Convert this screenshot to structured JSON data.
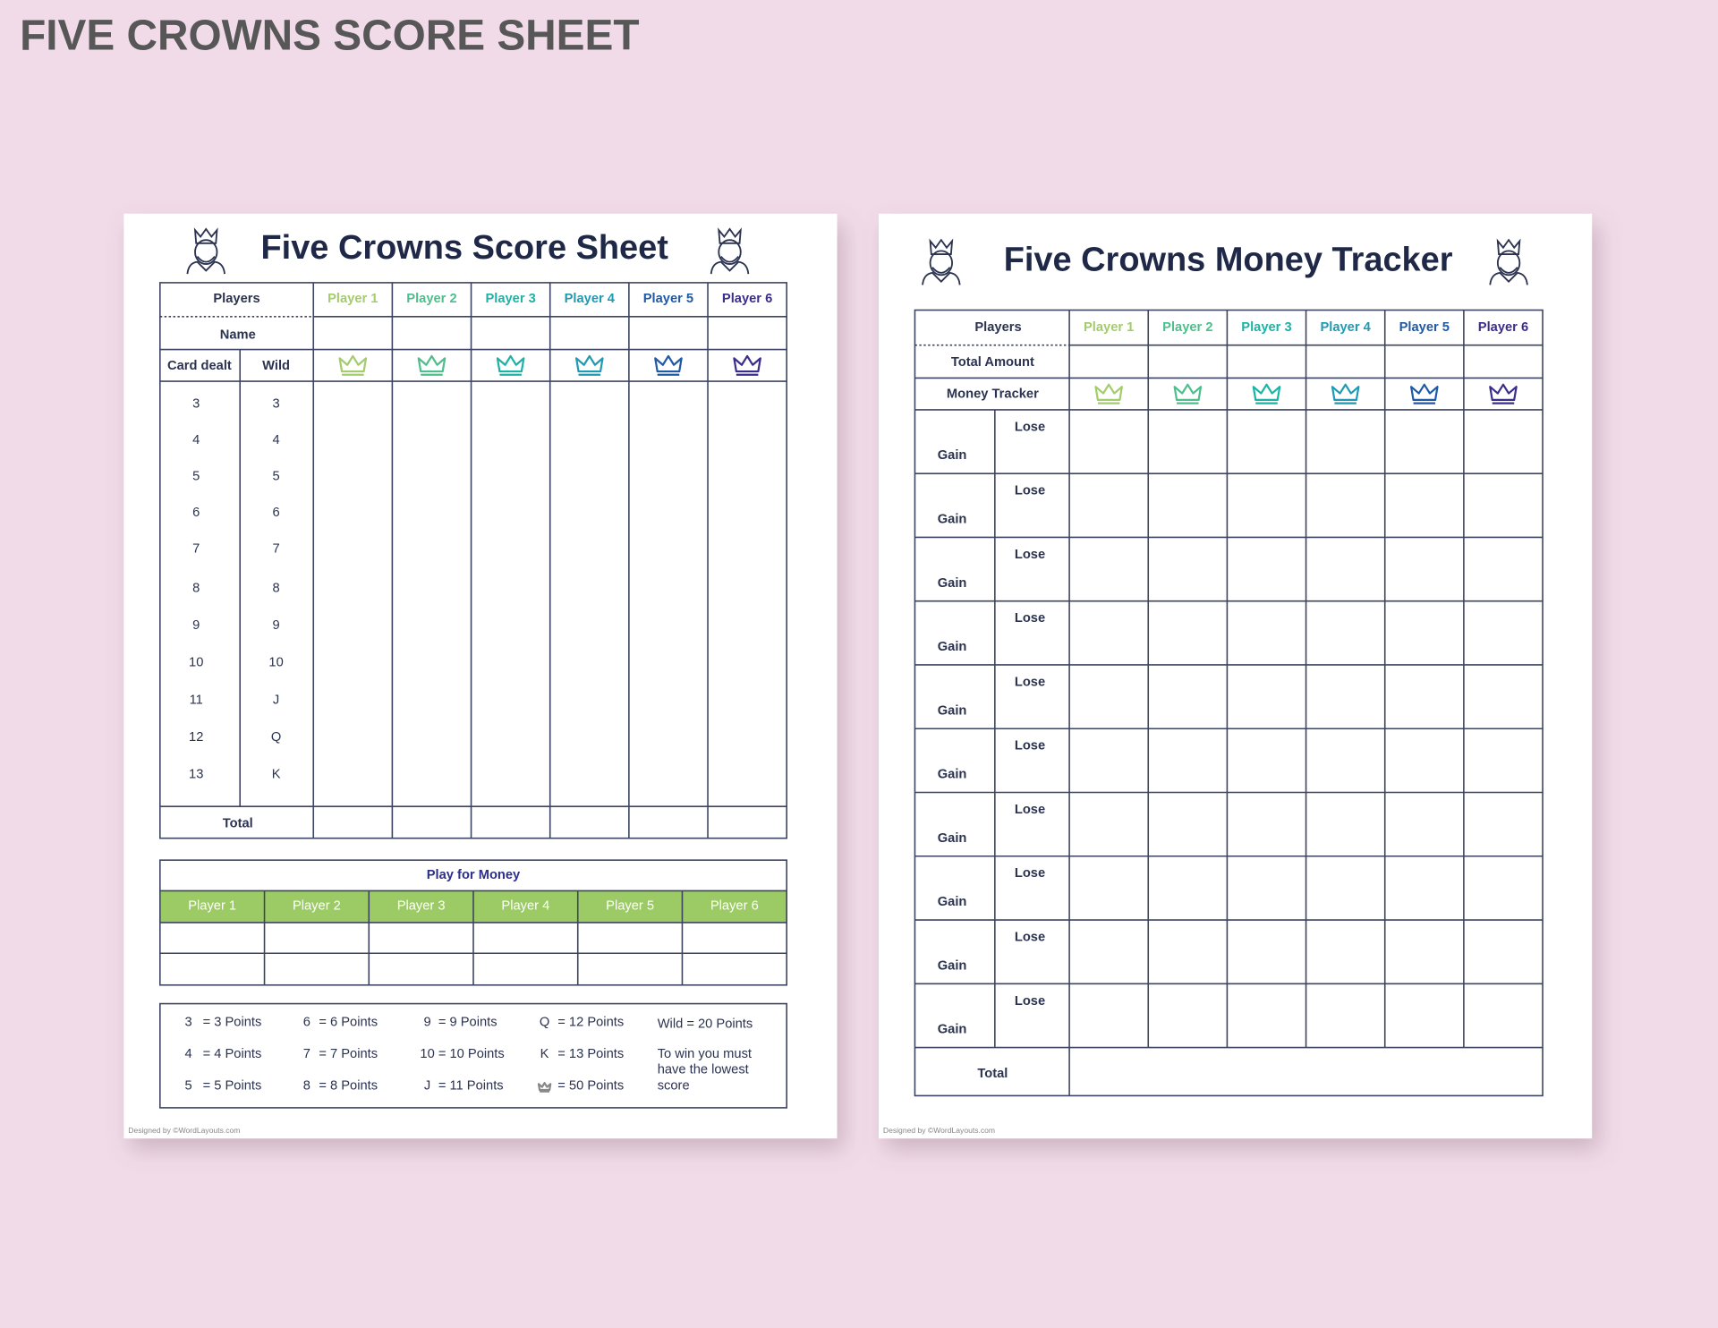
{
  "title": "FIVE CROWNS SCORE SHEET",
  "player_colors": [
    "#a3cc6b",
    "#4cbf8c",
    "#1bb3a6",
    "#1f9ab4",
    "#1f5aa6",
    "#3a2d8c"
  ],
  "score_sheet": {
    "title": "Five Crowns Score Sheet",
    "players_label": "Players",
    "players": [
      "Player 1",
      "Player 2",
      "Player 3",
      "Player 4",
      "Player 5",
      "Player 6"
    ],
    "name_label": "Name",
    "card_dealt_label": "Card dealt",
    "wild_label": "Wild",
    "rounds": [
      [
        "3",
        "3"
      ],
      [
        "4",
        "4"
      ],
      [
        "5",
        "5"
      ],
      [
        "6",
        "6"
      ],
      [
        "7",
        "7"
      ],
      [
        "8",
        "8"
      ],
      [
        "9",
        "9"
      ],
      [
        "10",
        "10"
      ],
      [
        "11",
        "J"
      ],
      [
        "12",
        "Q"
      ],
      [
        "13",
        "K"
      ]
    ],
    "total_label": "Total",
    "money": {
      "title": "Play for Money",
      "players": [
        "Player 1",
        "Player 2",
        "Player 3",
        "Player 4",
        "Player 5",
        "Player 6"
      ]
    },
    "points": [
      [
        {
          "key": "3",
          "value": "= 3 Points"
        },
        {
          "key": "4",
          "value": "= 4 Points"
        },
        {
          "key": "5",
          "value": "= 5 Points"
        }
      ],
      [
        {
          "key": "6",
          "value": "= 6 Points"
        },
        {
          "key": "7",
          "value": "= 7 Points"
        },
        {
          "key": "8",
          "value": "= 8 Points"
        }
      ],
      [
        {
          "key": "9",
          "value": "= 9 Points"
        },
        {
          "key": "10",
          "value": "= 10 Points"
        },
        {
          "key": "J",
          "value": "= 11 Points"
        }
      ],
      [
        {
          "key": "Q",
          "value": "= 12 Points"
        },
        {
          "key": "K",
          "value": "= 13 Points"
        },
        {
          "value": "= 50 Points"
        }
      ]
    ],
    "wild_points": "Wild = 20 Points",
    "win_note": [
      "To win you must",
      "have the lowest",
      "score"
    ],
    "credit": "Designed by ©WordLayouts.com"
  },
  "money_tracker": {
    "title": "Five Crowns Money Tracker",
    "players_label": "Players",
    "players": [
      "Player 1",
      "Player 2",
      "Player 3",
      "Player 4",
      "Player 5",
      "Player 6"
    ],
    "total_amount_label": "Total Amount",
    "money_tracker_label": "Money Tracker",
    "rows": [
      [
        "Lose",
        "Gain"
      ],
      [
        "Lose",
        "Gain"
      ],
      [
        "Lose",
        "Gain"
      ],
      [
        "Lose",
        "Gain"
      ],
      [
        "Lose",
        "Gain"
      ],
      [
        "Lose",
        "Gain"
      ],
      [
        "Lose",
        "Gain"
      ],
      [
        "Lose",
        "Gain"
      ],
      [
        "Lose",
        "Gain"
      ],
      [
        "Lose",
        "Gain"
      ]
    ],
    "total_label": "Total",
    "credit": "Designed by ©WordLayouts.com"
  }
}
